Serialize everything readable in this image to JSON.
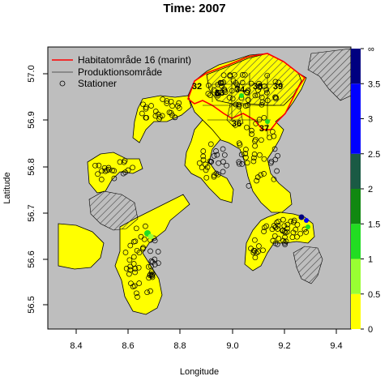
{
  "title": "Time: 2007",
  "axes": {
    "xlabel": "Longitude",
    "ylabel": "Latitude",
    "x_ticks": [
      "8.4",
      "8.6",
      "8.8",
      "9.0",
      "9.2",
      "9.4"
    ],
    "y_ticks": [
      "56.5",
      "56.6",
      "56.7",
      "56.8",
      "56.9",
      "57.0"
    ]
  },
  "legend": {
    "items": [
      {
        "label": "Habitatområde 16 (marint)",
        "symbol": "line",
        "color": "#ff0000"
      },
      {
        "label": "Produktionsområde",
        "symbol": "line",
        "color": "#555555"
      },
      {
        "label": "Stationer",
        "symbol": "circle",
        "color": "#000000"
      }
    ]
  },
  "zones": [
    "32",
    "33",
    "34",
    "38",
    "39",
    "36",
    "37"
  ],
  "colorbar": {
    "labels": [
      "∞",
      "3.5",
      "3",
      "2.5",
      "2",
      "1.5",
      "1",
      "0.5",
      "0"
    ],
    "bins": [
      {
        "from": 0,
        "to": 0.5,
        "color": "#ffff00"
      },
      {
        "from": 0.5,
        "to": 1,
        "color": "#99ff33"
      },
      {
        "from": 1,
        "to": 1.5,
        "color": "#22dd22"
      },
      {
        "from": 1.5,
        "to": 2,
        "color": "#118811"
      },
      {
        "from": 2,
        "to": 2.5,
        "color": "#1a5a44"
      },
      {
        "from": 2.5,
        "to": 3,
        "color": "#0000ff"
      },
      {
        "from": 3,
        "to": 3.5,
        "color": "#0000ff"
      },
      {
        "from": 3.5,
        "to": "∞",
        "color": "#000080"
      }
    ]
  },
  "colors": {
    "land": "#bebebe",
    "water": "#ffff00",
    "habitat_border": "#ff0000",
    "hatch": "#444444"
  }
}
